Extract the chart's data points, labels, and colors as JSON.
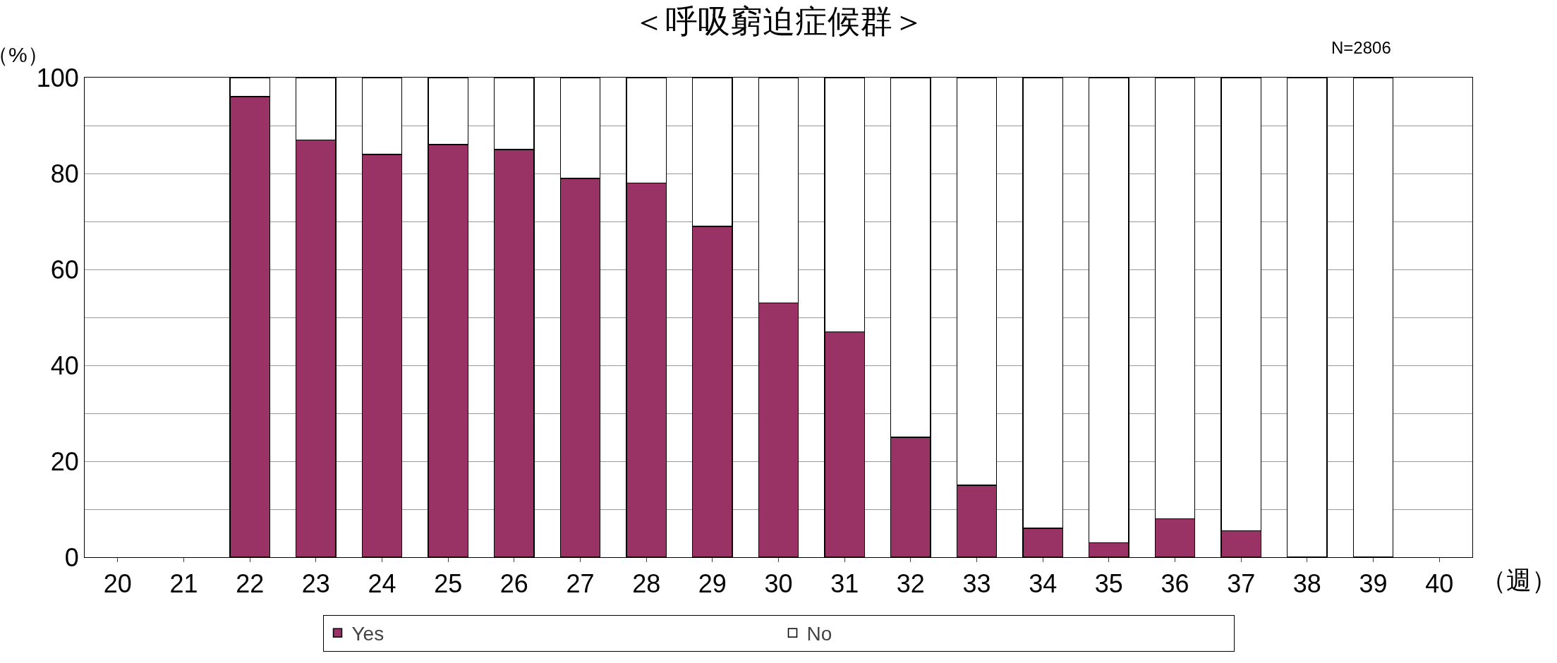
{
  "chart_data": {
    "type": "bar",
    "title": "＜呼吸窮迫症候群＞",
    "ylabel": "（%）",
    "xlabel": "（週）",
    "annotations": [
      "N=2806"
    ],
    "categories": [
      "20",
      "21",
      "22",
      "23",
      "24",
      "25",
      "26",
      "27",
      "28",
      "29",
      "30",
      "31",
      "32",
      "33",
      "34",
      "35",
      "36",
      "37",
      "38",
      "39",
      "40"
    ],
    "stacked": true,
    "series": [
      {
        "name": "Yes",
        "color": "#993366",
        "values": [
          null,
          null,
          96,
          87,
          84,
          86,
          85,
          79,
          78,
          69,
          53,
          47,
          25,
          15,
          6,
          3,
          8,
          5.5,
          0,
          0,
          null
        ]
      },
      {
        "name": "No",
        "color": "#ffffff",
        "values": [
          null,
          null,
          4,
          13,
          16,
          14,
          15,
          21,
          22,
          31,
          47,
          53,
          75,
          85,
          94,
          97,
          92,
          94.5,
          100,
          100,
          null
        ]
      }
    ],
    "ylim": [
      0,
      100
    ],
    "yticks": [
      0,
      {
        "value": 10,
        "label": null
      },
      20,
      {
        "value": 30,
        "label": null
      },
      40,
      {
        "value": 50,
        "label": null
      },
      60,
      {
        "value": 70,
        "label": null
      },
      80,
      {
        "value": 90,
        "label": null
      },
      100
    ],
    "grid": "y",
    "legend": "bottom"
  }
}
